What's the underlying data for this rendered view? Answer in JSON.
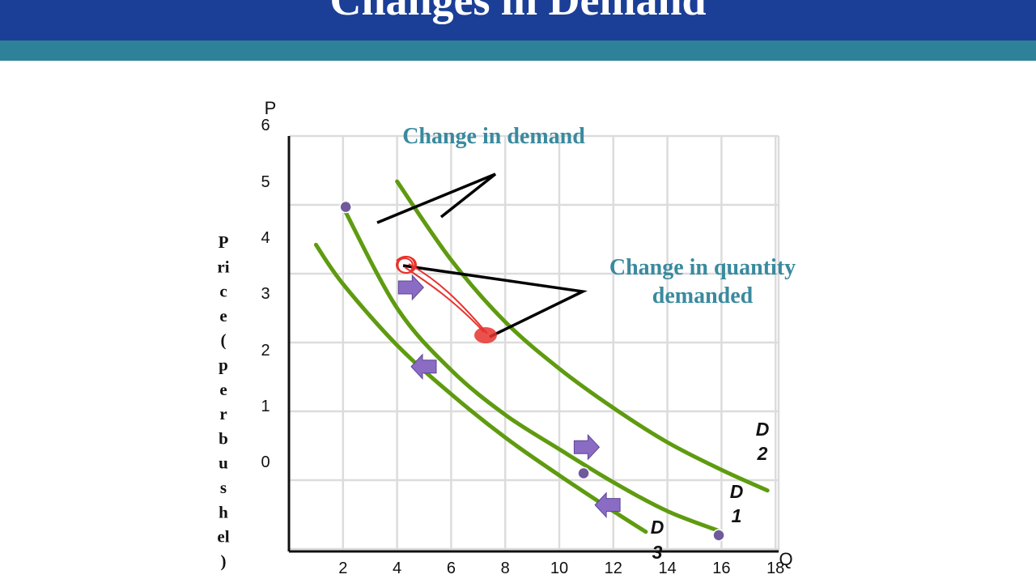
{
  "slide": {
    "title": "Changes in Demand"
  },
  "colors": {
    "title_bar": "#1b3f97",
    "title_stripe": "#2d8199",
    "curve": "#5f9b10",
    "annotation_text": "#3a8a9e",
    "point": "#6f5a9c",
    "arrow": "#8a6cc4",
    "scribble": "#e8322d"
  },
  "chart_data": {
    "type": "line",
    "x_axis_letter": "Q",
    "y_axis_letter": "P",
    "ylabel": "Price (per bushel)",
    "ylabel_chars": [
      "P",
      "ri",
      "c",
      "e",
      "(",
      "p",
      "e",
      "r",
      "b",
      "u",
      "s",
      "h",
      "el",
      ")"
    ],
    "x_ticks": [
      "2",
      "4",
      "6",
      "8",
      "10",
      "12",
      "14",
      "16",
      "18"
    ],
    "y_ticks": [
      "6",
      "5",
      "4",
      "3",
      "2",
      "1",
      "0"
    ],
    "xlim": [
      0,
      18
    ],
    "ylim": [
      -0.72,
      6
    ],
    "grid": true,
    "series": [
      {
        "name": "D 1",
        "label_lines": [
          "D",
          "1"
        ],
        "points": [
          [
            2,
            4.97
          ],
          [
            4,
            3.5
          ],
          [
            6,
            2.6
          ],
          [
            8,
            1.95
          ],
          [
            10,
            1.45
          ],
          [
            12,
            0.97
          ],
          [
            14,
            0.55
          ],
          [
            16,
            0.25
          ]
        ]
      },
      {
        "name": "D 2",
        "label_lines": [
          "D",
          "2"
        ],
        "points": [
          [
            4,
            5.34
          ],
          [
            6,
            4.2
          ],
          [
            8,
            3.3
          ],
          [
            10,
            2.62
          ],
          [
            12,
            2.05
          ],
          [
            14,
            1.55
          ],
          [
            16,
            1.15
          ],
          [
            17.7,
            0.85
          ]
        ]
      },
      {
        "name": "D 3",
        "label_lines": [
          "D",
          "3"
        ],
        "points": [
          [
            1,
            4.42
          ],
          [
            2,
            3.85
          ],
          [
            4,
            2.96
          ],
          [
            6,
            2.25
          ],
          [
            8,
            1.62
          ],
          [
            10,
            1.07
          ],
          [
            12,
            0.55
          ],
          [
            13.2,
            0.25
          ]
        ]
      }
    ],
    "marked_points": [
      [
        2.1,
        4.97
      ],
      [
        10.9,
        1.1
      ],
      [
        15.9,
        0.2
      ]
    ],
    "arrows": [
      {
        "direction": "right",
        "x": 4.5,
        "y": 3.8
      },
      {
        "direction": "left",
        "x": 5,
        "y": 2.65
      },
      {
        "direction": "right",
        "x": 11,
        "y": 1.48
      },
      {
        "direction": "left",
        "x": 11.8,
        "y": 0.64
      }
    ],
    "annotations": [
      {
        "text_lines": [
          "Change in demand"
        ],
        "anchor": "top-center"
      },
      {
        "text_lines": [
          "Change in quantity",
          "demanded"
        ],
        "anchor": "middle-right"
      }
    ]
  }
}
